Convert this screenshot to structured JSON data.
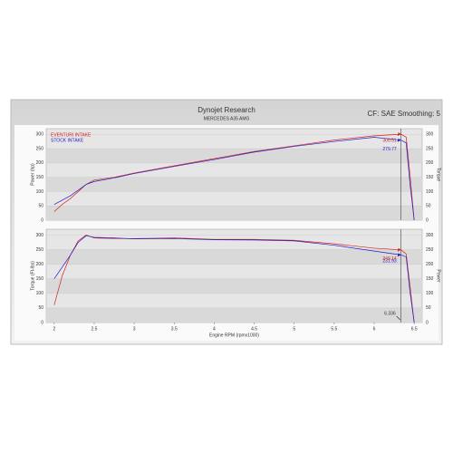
{
  "header": {
    "title": "Dynojet Research",
    "subtitle": "MERCEDES A35 AMG",
    "note": "CF: SAE Smoothing: 5"
  },
  "chart_data": [
    {
      "type": "line",
      "y_label": "Power (hp)",
      "y2_label": "Torque",
      "xlim": [
        1.9,
        6.6
      ],
      "ylim": [
        0,
        320
      ],
      "yticks": [
        0,
        50,
        100,
        150,
        200,
        250,
        300
      ],
      "y2lim": [
        0,
        320
      ],
      "y2ticks": [
        0,
        50,
        100,
        150,
        200,
        250,
        300
      ],
      "x": [
        2.0,
        2.1,
        2.2,
        2.3,
        2.4,
        2.5,
        2.75,
        3.0,
        3.5,
        4.0,
        4.5,
        5.0,
        5.5,
        6.0,
        6.336,
        6.4,
        6.45,
        6.5
      ],
      "series": [
        {
          "name": "EVENTURI INTAKE",
          "color": "#d42020",
          "values": [
            30,
            55,
            75,
            100,
            125,
            140,
            150,
            165,
            190,
            215,
            240,
            260,
            280,
            295,
            300.51,
            290,
            150,
            0
          ]
        },
        {
          "name": "STOCK INTAKE",
          "color": "#2020c8",
          "values": [
            55,
            70,
            85,
            105,
            125,
            135,
            148,
            163,
            188,
            212,
            238,
            258,
            275,
            290,
            279.77,
            270,
            120,
            0
          ]
        }
      ],
      "annotations": [
        {
          "label": "300.51",
          "x": 6.336,
          "y": 300.51,
          "color": "#d42020"
        },
        {
          "label": "279.77",
          "x": 6.336,
          "y": 279.77,
          "color": "#2020c8"
        }
      ]
    },
    {
      "type": "line",
      "y_label": "Torque (Ft-lbs)",
      "y2_label": "Power",
      "x_label": "Engine RPM (rpmx1000)",
      "xlim": [
        1.9,
        6.6
      ],
      "xticks": [
        2.0,
        2.5,
        3.0,
        3.5,
        4.0,
        4.5,
        5.0,
        5.5,
        6.0,
        6.5
      ],
      "ylim": [
        0,
        320
      ],
      "yticks": [
        0,
        50,
        100,
        150,
        200,
        250,
        300
      ],
      "y2lim": [
        0,
        320
      ],
      "y2ticks": [
        0,
        50,
        100,
        150,
        200,
        250,
        300
      ],
      "x": [
        2.0,
        2.1,
        2.2,
        2.3,
        2.4,
        2.5,
        2.75,
        3.0,
        3.5,
        4.0,
        4.5,
        5.0,
        5.5,
        6.0,
        6.336,
        6.4,
        6.45,
        6.5
      ],
      "series": [
        {
          "name": "EVENTURI INTAKE",
          "color": "#d42020",
          "values": [
            60,
            160,
            230,
            280,
            300,
            290,
            288,
            288,
            290,
            285,
            285,
            282,
            270,
            255,
            249.14,
            235,
            120,
            0
          ]
        },
        {
          "name": "STOCK INTAKE",
          "color": "#2020c8",
          "values": [
            150,
            190,
            230,
            275,
            298,
            292,
            290,
            287,
            288,
            284,
            283,
            280,
            265,
            245,
            231.93,
            225,
            100,
            0
          ]
        }
      ],
      "annotations": [
        {
          "label": "231.93",
          "x": 6.336,
          "y": 231.93,
          "color": "#2020c8"
        },
        {
          "label": "249.14",
          "x": 6.336,
          "y": 249.14,
          "color": "#d42020"
        }
      ],
      "cursor": {
        "x": 6.336,
        "label": "6.336"
      }
    }
  ]
}
